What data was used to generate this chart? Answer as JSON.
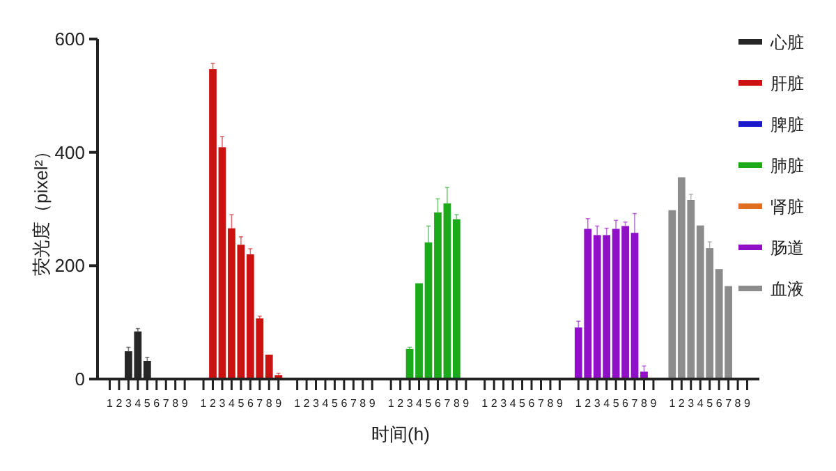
{
  "chart_data": {
    "type": "bar",
    "xlabel": "时间(h)",
    "ylabel": "荧光度（pixel²）",
    "ylim": [
      0,
      600
    ],
    "yticks": [
      0,
      200,
      400,
      600
    ],
    "grid": false,
    "legend": "top right",
    "categories": [
      "1",
      "2",
      "3",
      "4",
      "5",
      "6",
      "7",
      "8",
      "9",
      null,
      "1",
      "2",
      "3",
      "4",
      "5",
      "6",
      "7",
      "8",
      "9",
      null,
      "1",
      "2",
      "3",
      "4",
      "5",
      "6",
      "7",
      "8",
      "9",
      null,
      "1",
      "2",
      "3",
      "4",
      "5",
      "6",
      "7",
      "8",
      "9",
      null,
      "1",
      "2",
      "3",
      "4",
      "5",
      "6",
      "7",
      "8",
      "9",
      null,
      "1",
      "2",
      "3",
      "4",
      "5",
      "6",
      "7",
      "8",
      "9",
      null,
      "1",
      "2",
      "3",
      "4",
      "5",
      "6",
      "7",
      "8",
      "9"
    ],
    "series": [
      {
        "name": "心脏",
        "color": "#262626",
        "values": [
          null,
          null,
          49,
          84,
          32,
          null,
          null,
          null,
          null,
          null,
          null,
          null,
          null,
          null,
          null,
          null,
          null,
          null,
          null,
          null,
          null,
          null,
          null,
          null,
          null,
          null,
          null,
          null,
          null,
          null,
          null,
          null,
          null,
          null,
          null,
          null,
          null,
          null,
          null,
          null,
          null,
          null,
          null,
          null,
          null,
          null,
          null,
          null,
          null,
          null,
          null,
          null,
          null,
          null,
          null,
          null,
          null,
          null,
          null,
          null,
          null,
          null,
          null,
          null,
          null,
          null,
          null,
          null,
          null
        ],
        "errors": [
          null,
          null,
          7,
          5,
          6,
          null,
          null,
          null,
          null,
          null,
          null,
          null,
          null,
          null,
          null,
          null,
          null,
          null,
          null,
          null,
          null,
          null,
          null,
          null,
          null,
          null,
          null,
          null,
          null,
          null,
          null,
          null,
          null,
          null,
          null,
          null,
          null,
          null,
          null,
          null,
          null,
          null,
          null,
          null,
          null,
          null,
          null,
          null,
          null,
          null,
          null,
          null,
          null,
          null,
          null,
          null,
          null,
          null,
          null,
          null,
          null,
          null,
          null,
          null,
          null,
          null,
          null,
          null,
          null
        ]
      },
      {
        "name": "肝脏",
        "color": "#cc1111",
        "values": [
          null,
          null,
          null,
          null,
          null,
          null,
          null,
          null,
          null,
          null,
          null,
          547,
          409,
          266,
          237,
          220,
          107,
          43,
          7,
          null,
          null,
          null,
          null,
          null,
          null,
          null,
          null,
          null,
          null,
          null,
          null,
          null,
          null,
          null,
          null,
          null,
          null,
          null,
          null,
          null,
          null,
          null,
          null,
          null,
          null,
          null,
          null,
          null,
          null,
          null,
          null,
          null,
          null,
          null,
          null,
          null,
          null,
          null,
          null,
          null,
          null,
          null,
          null,
          null,
          null,
          null,
          null,
          null,
          null
        ],
        "errors": [
          null,
          null,
          null,
          null,
          null,
          null,
          null,
          null,
          null,
          null,
          null,
          10,
          19,
          24,
          14,
          10,
          4,
          null,
          3,
          null,
          null,
          null,
          null,
          null,
          null,
          null,
          null,
          null,
          null,
          null,
          null,
          null,
          null,
          null,
          null,
          null,
          null,
          null,
          null,
          null,
          null,
          null,
          null,
          null,
          null,
          null,
          null,
          null,
          null,
          null,
          null,
          null,
          null,
          null,
          null,
          null,
          null,
          null,
          null,
          null,
          null,
          null,
          null,
          null,
          null,
          null,
          null,
          null,
          null
        ]
      },
      {
        "name": "脾脏",
        "color": "#1a1acc",
        "values": [
          null,
          null,
          null,
          null,
          null,
          null,
          null,
          null,
          null,
          null,
          null,
          null,
          null,
          null,
          null,
          null,
          null,
          null,
          null,
          null,
          null,
          null,
          null,
          null,
          null,
          null,
          null,
          null,
          null,
          null,
          null,
          null,
          null,
          null,
          null,
          null,
          null,
          null,
          null,
          null,
          null,
          null,
          null,
          null,
          null,
          null,
          null,
          null,
          null,
          null,
          null,
          null,
          null,
          null,
          null,
          null,
          null,
          null,
          null,
          null,
          null,
          null,
          null,
          null,
          null,
          null,
          null,
          null,
          null
        ]
      },
      {
        "name": "肺脏",
        "color": "#1aaa1a",
        "values": [
          null,
          null,
          null,
          null,
          null,
          null,
          null,
          null,
          null,
          null,
          null,
          null,
          null,
          null,
          null,
          null,
          null,
          null,
          null,
          null,
          null,
          null,
          null,
          null,
          null,
          null,
          null,
          null,
          null,
          null,
          null,
          null,
          53,
          169,
          241,
          294,
          310,
          282,
          null,
          null,
          null,
          null,
          null,
          null,
          null,
          null,
          null,
          null,
          null,
          null,
          null,
          null,
          null,
          null,
          null,
          null,
          null,
          null,
          null,
          null,
          null,
          null,
          null,
          null,
          null,
          null,
          null,
          null,
          null
        ],
        "errors": [
          null,
          null,
          null,
          null,
          null,
          null,
          null,
          null,
          null,
          null,
          null,
          null,
          null,
          null,
          null,
          null,
          null,
          null,
          null,
          null,
          null,
          null,
          null,
          null,
          null,
          null,
          null,
          null,
          null,
          null,
          null,
          null,
          3,
          null,
          29,
          24,
          28,
          8,
          null,
          null,
          null,
          null,
          null,
          null,
          null,
          null,
          null,
          null,
          null,
          null,
          null,
          null,
          null,
          null,
          null,
          null,
          null,
          null,
          null,
          null,
          null,
          null,
          null,
          null,
          null,
          null,
          null,
          null,
          null
        ]
      },
      {
        "name": "肾脏",
        "color": "#e07020",
        "values": [
          null,
          null,
          null,
          null,
          null,
          null,
          null,
          null,
          null,
          null,
          null,
          null,
          null,
          null,
          null,
          null,
          null,
          null,
          null,
          null,
          null,
          null,
          null,
          null,
          null,
          null,
          null,
          null,
          null,
          null,
          null,
          null,
          null,
          null,
          null,
          null,
          null,
          null,
          null,
          null,
          null,
          null,
          null,
          null,
          null,
          null,
          null,
          null,
          null,
          null,
          null,
          null,
          null,
          null,
          null,
          null,
          null,
          null,
          null,
          null,
          null,
          null,
          null,
          null,
          null,
          null,
          null,
          null,
          null
        ]
      },
      {
        "name": "肠道",
        "color": "#9010c8",
        "values": [
          null,
          null,
          null,
          null,
          null,
          null,
          null,
          null,
          null,
          null,
          null,
          null,
          null,
          null,
          null,
          null,
          null,
          null,
          null,
          null,
          null,
          null,
          null,
          null,
          null,
          null,
          null,
          null,
          null,
          null,
          null,
          null,
          null,
          null,
          null,
          null,
          null,
          null,
          null,
          null,
          null,
          null,
          null,
          null,
          null,
          null,
          null,
          null,
          null,
          null,
          91,
          265,
          254,
          254,
          265,
          270,
          258,
          13,
          null,
          null,
          null,
          null,
          null,
          null,
          null,
          null,
          null,
          null,
          null
        ],
        "errors": [
          null,
          null,
          null,
          null,
          null,
          null,
          null,
          null,
          null,
          null,
          null,
          null,
          null,
          null,
          null,
          null,
          null,
          null,
          null,
          null,
          null,
          null,
          null,
          null,
          null,
          null,
          null,
          null,
          null,
          null,
          null,
          null,
          null,
          null,
          null,
          null,
          null,
          null,
          null,
          null,
          null,
          null,
          null,
          null,
          null,
          null,
          null,
          null,
          null,
          null,
          11,
          18,
          16,
          12,
          15,
          7,
          34,
          10,
          null,
          null,
          null,
          null,
          null,
          null,
          null,
          null,
          null,
          null,
          null
        ]
      },
      {
        "name": "血液",
        "color": "#8c8c8c",
        "values": [
          null,
          null,
          null,
          null,
          null,
          null,
          null,
          null,
          null,
          null,
          null,
          null,
          null,
          null,
          null,
          null,
          null,
          null,
          null,
          null,
          null,
          null,
          null,
          null,
          null,
          null,
          null,
          null,
          null,
          null,
          null,
          null,
          null,
          null,
          null,
          null,
          null,
          null,
          null,
          null,
          null,
          null,
          null,
          null,
          null,
          null,
          null,
          null,
          null,
          null,
          null,
          null,
          null,
          null,
          null,
          null,
          null,
          null,
          null,
          null,
          298,
          356,
          316,
          271,
          231,
          194,
          164,
          null,
          null
        ],
        "errors": [
          null,
          null,
          null,
          null,
          null,
          null,
          null,
          null,
          null,
          null,
          null,
          null,
          null,
          null,
          null,
          null,
          null,
          null,
          null,
          null,
          null,
          null,
          null,
          null,
          null,
          null,
          null,
          null,
          null,
          null,
          null,
          null,
          null,
          null,
          null,
          null,
          null,
          null,
          null,
          null,
          null,
          null,
          null,
          null,
          null,
          null,
          null,
          null,
          null,
          null,
          null,
          null,
          null,
          null,
          null,
          null,
          null,
          null,
          null,
          null,
          null,
          null,
          10,
          null,
          11,
          null,
          null,
          null,
          null
        ]
      }
    ]
  }
}
